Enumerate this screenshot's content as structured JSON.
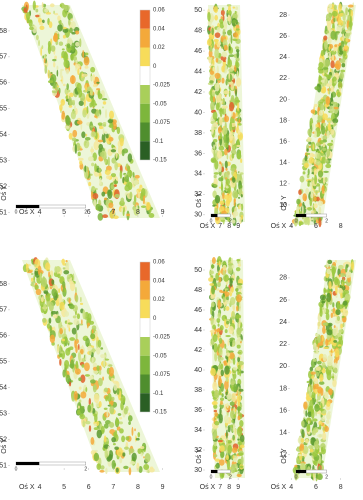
{
  "chart_data": [
    {
      "type": "map",
      "xlabel": "Oś X",
      "ylabel": "Oś Y",
      "xlim": [
        2.8,
        9.1
      ],
      "ylim": [
        50.9,
        59
      ],
      "xticks": [
        4,
        5,
        6,
        7,
        8,
        9
      ],
      "yticks": [
        51,
        52,
        53,
        54,
        55,
        56,
        57,
        58
      ],
      "scalebar": [
        0,
        2
      ],
      "colorbar": {
        "ticks": [
          0.06,
          0.04,
          0.02,
          0,
          -0.025,
          -0.05,
          -0.075,
          -0.1,
          -0.15
        ],
        "colors": [
          "#e8682a",
          "#f4a93a",
          "#f7dc5a",
          "#ffffff",
          "#a9cf5a",
          "#7db63c",
          "#4f8e2e",
          "#2a5f24"
        ]
      }
    },
    {
      "type": "map",
      "xlabel": "Oś X",
      "ylabel": "Oś Y",
      "xlim": [
        5.3,
        10.1
      ],
      "ylim": [
        29.3,
        50.5
      ],
      "xticks": [
        7,
        8,
        9
      ],
      "yticks": [
        30,
        32,
        34,
        36,
        38,
        40,
        42,
        44,
        46,
        48,
        50
      ],
      "scalebar": [
        0,
        2
      ]
    },
    {
      "type": "map",
      "xlabel": "Oś X",
      "ylabel": "Oś Y",
      "xlim": [
        3.9,
        9.4
      ],
      "ylim": [
        8.1,
        28.95
      ],
      "xticks": [
        4,
        6,
        8
      ],
      "yticks": [
        10,
        12,
        14,
        16,
        18,
        20,
        22,
        24,
        26,
        28
      ],
      "scalebar": [
        0,
        2
      ]
    },
    {
      "type": "map",
      "xlabel": "Oś X",
      "ylabel": "Oś Y",
      "xlim": [
        2.8,
        9.1
      ],
      "ylim": [
        50.9,
        59
      ],
      "xticks": [
        4,
        5,
        6,
        7,
        8,
        9
      ],
      "yticks": [
        51,
        52,
        53,
        54,
        55,
        56,
        57,
        58
      ],
      "scalebar": [
        0,
        2
      ],
      "colorbar": {
        "ticks": [
          0.06,
          0.04,
          0.02,
          0,
          -0.025,
          -0.05,
          -0.075,
          -0.1,
          -0.15
        ],
        "colors": [
          "#e8682a",
          "#f4a93a",
          "#f7dc5a",
          "#ffffff",
          "#a9cf5a",
          "#7db63c",
          "#4f8e2e",
          "#2a5f24"
        ]
      }
    },
    {
      "type": "map",
      "xlabel": "Oś X",
      "ylabel": "Oś Y",
      "xlim": [
        5.3,
        10.1
      ],
      "ylim": [
        29.2,
        51.2
      ],
      "xticks": [
        7,
        8,
        9
      ],
      "yticks": [
        30,
        32,
        34,
        36,
        38,
        40,
        42,
        44,
        46,
        48,
        50
      ],
      "scalebar": [
        0,
        2
      ]
    },
    {
      "type": "map",
      "xlabel": "Oś X",
      "ylabel": "Oś Y",
      "xlim": [
        3.9,
        9.4
      ],
      "ylim": [
        9.9,
        29.8
      ],
      "xticks": [
        4,
        6,
        8
      ],
      "yticks": [
        12,
        14,
        16,
        18,
        20,
        22,
        24,
        26,
        28
      ],
      "scalebar": [
        0,
        2
      ]
    }
  ]
}
